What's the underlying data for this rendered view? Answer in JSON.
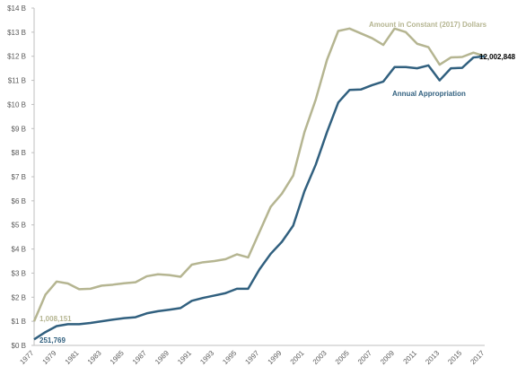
{
  "chart_data": {
    "type": "line",
    "title": "",
    "xlabel": "",
    "ylabel": "",
    "ylim": [
      0,
      14
    ],
    "y_tick_labels": [
      "$0 B",
      "$1 B",
      "$2 B",
      "$3 B",
      "$4 B",
      "$5 B",
      "$6 B",
      "$7 B",
      "$8 B",
      "$9 B",
      "$10 B",
      "$11 B",
      "$12 B",
      "$13 B",
      "$14 B"
    ],
    "x_tick_labels": [
      "1977",
      "1979",
      "1981",
      "1983",
      "1985",
      "1987",
      "1989",
      "1991",
      "1993",
      "1995",
      "1997",
      "1999",
      "2001",
      "2003",
      "2005",
      "2007",
      "2009",
      "2011",
      "2013",
      "2015",
      "2017"
    ],
    "x": [
      1977,
      1978,
      1979,
      1980,
      1981,
      1982,
      1983,
      1984,
      1985,
      1986,
      1987,
      1988,
      1989,
      1990,
      1991,
      1992,
      1993,
      1994,
      1995,
      1996,
      1997,
      1998,
      1999,
      2000,
      2001,
      2002,
      2003,
      2004,
      2005,
      2006,
      2007,
      2008,
      2009,
      2010,
      2011,
      2012,
      2013,
      2014,
      2015,
      2016,
      2017
    ],
    "grid": false,
    "series": [
      {
        "name": "Amount in Constant (2017) Dollars",
        "color": "#b5b591",
        "values": [
          1.0,
          2.1,
          2.65,
          2.57,
          2.33,
          2.35,
          2.48,
          2.52,
          2.58,
          2.62,
          2.87,
          2.95,
          2.92,
          2.85,
          3.35,
          3.45,
          3.5,
          3.58,
          3.78,
          3.65,
          4.7,
          5.75,
          6.3,
          7.05,
          8.85,
          10.2,
          11.85,
          13.05,
          13.15,
          12.95,
          12.75,
          12.47,
          13.15,
          13.0,
          12.52,
          12.38,
          11.65,
          11.95,
          11.97,
          12.15,
          12.0
        ]
      },
      {
        "name": "Annual Appropriation",
        "color": "#31607f",
        "values": [
          0.25,
          0.55,
          0.8,
          0.88,
          0.88,
          0.93,
          1.0,
          1.07,
          1.13,
          1.17,
          1.33,
          1.42,
          1.48,
          1.55,
          1.85,
          1.97,
          2.07,
          2.17,
          2.35,
          2.35,
          3.15,
          3.8,
          4.3,
          4.97,
          6.4,
          7.5,
          8.85,
          10.08,
          10.6,
          10.62,
          10.8,
          10.95,
          11.55,
          11.55,
          11.5,
          11.62,
          11.0,
          11.5,
          11.52,
          11.95,
          12.0
        ]
      }
    ],
    "annotations": {
      "start_constant": "1,008,151",
      "start_appropriation": "251,769",
      "end_value": "12,002,848"
    }
  }
}
